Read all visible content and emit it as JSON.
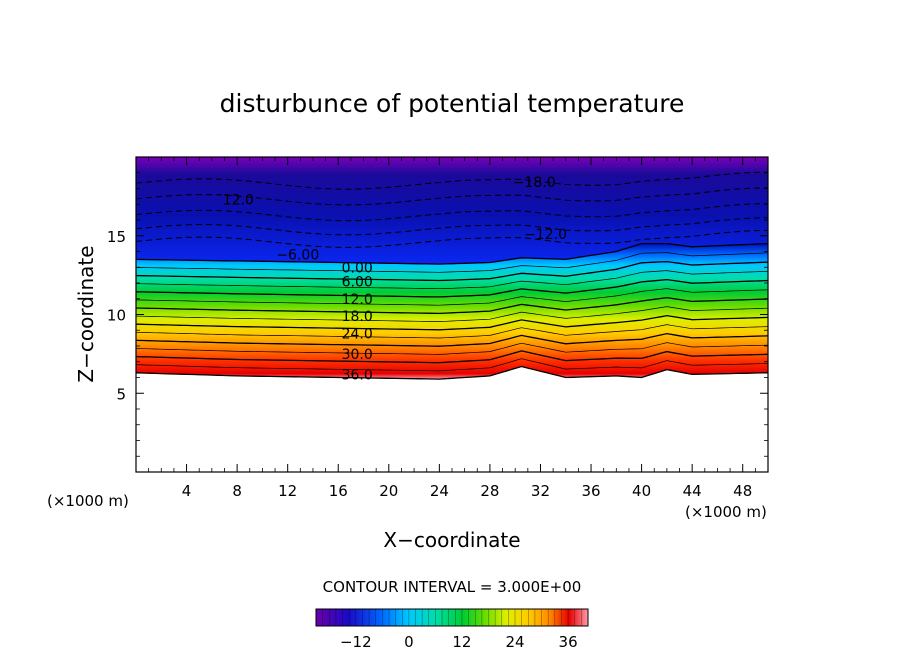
{
  "chart_data": {
    "type": "heatmap",
    "title": "disturbunce of potential temperature",
    "xlabel": "X−coordinate",
    "ylabel": "Z−coordinate",
    "x_unit_left": "(×1000 m)",
    "x_unit_right": "(×1000 m)",
    "xlim": [
      0,
      50
    ],
    "ylim": [
      0,
      20
    ],
    "x_ticks": [
      4,
      8,
      12,
      16,
      20,
      24,
      28,
      32,
      36,
      40,
      44,
      48
    ],
    "y_ticks": [
      5,
      10,
      15
    ],
    "contour_interval_label": "CONTOUR INTERVAL = 3.000E+00",
    "colorbar": {
      "min": -21,
      "max": 40.5,
      "ticks": [
        -12,
        0,
        12,
        24,
        36
      ]
    },
    "contour_labels": [
      {
        "text": "−18.0",
        "x": 31.5,
        "z": 18.4
      },
      {
        "text": "12.0",
        "x": 8.1,
        "z": 17.3
      },
      {
        "text": "−12.0",
        "x": 32.4,
        "z": 15.1
      },
      {
        "text": "−6.00",
        "x": 12.8,
        "z": 13.8
      },
      {
        "text": "0.00",
        "x": 17.5,
        "z": 13.0
      },
      {
        "text": "6.00",
        "x": 17.5,
        "z": 12.1
      },
      {
        "text": "12.0",
        "x": 17.5,
        "z": 11.0
      },
      {
        "text": "18.0",
        "x": 17.5,
        "z": 9.9
      },
      {
        "text": "24.0",
        "x": 17.5,
        "z": 8.8
      },
      {
        "text": "30.0",
        "x": 17.5,
        "z": 7.5
      },
      {
        "text": "36.0",
        "x": 17.5,
        "z": 6.2
      }
    ],
    "field_profile": {
      "x": [
        0,
        8,
        16,
        24,
        28,
        30.5,
        34,
        38,
        40,
        42,
        44,
        50
      ],
      "ground": [
        6.3,
        6.1,
        6.0,
        5.9,
        6.1,
        6.7,
        6.0,
        6.1,
        6.0,
        6.5,
        6.2,
        6.3
      ],
      "top": [
        13.5,
        13.4,
        13.3,
        13.2,
        13.3,
        13.6,
        13.5,
        14.0,
        14.5,
        14.5,
        14.3,
        14.5
      ]
    },
    "grid": false
  }
}
